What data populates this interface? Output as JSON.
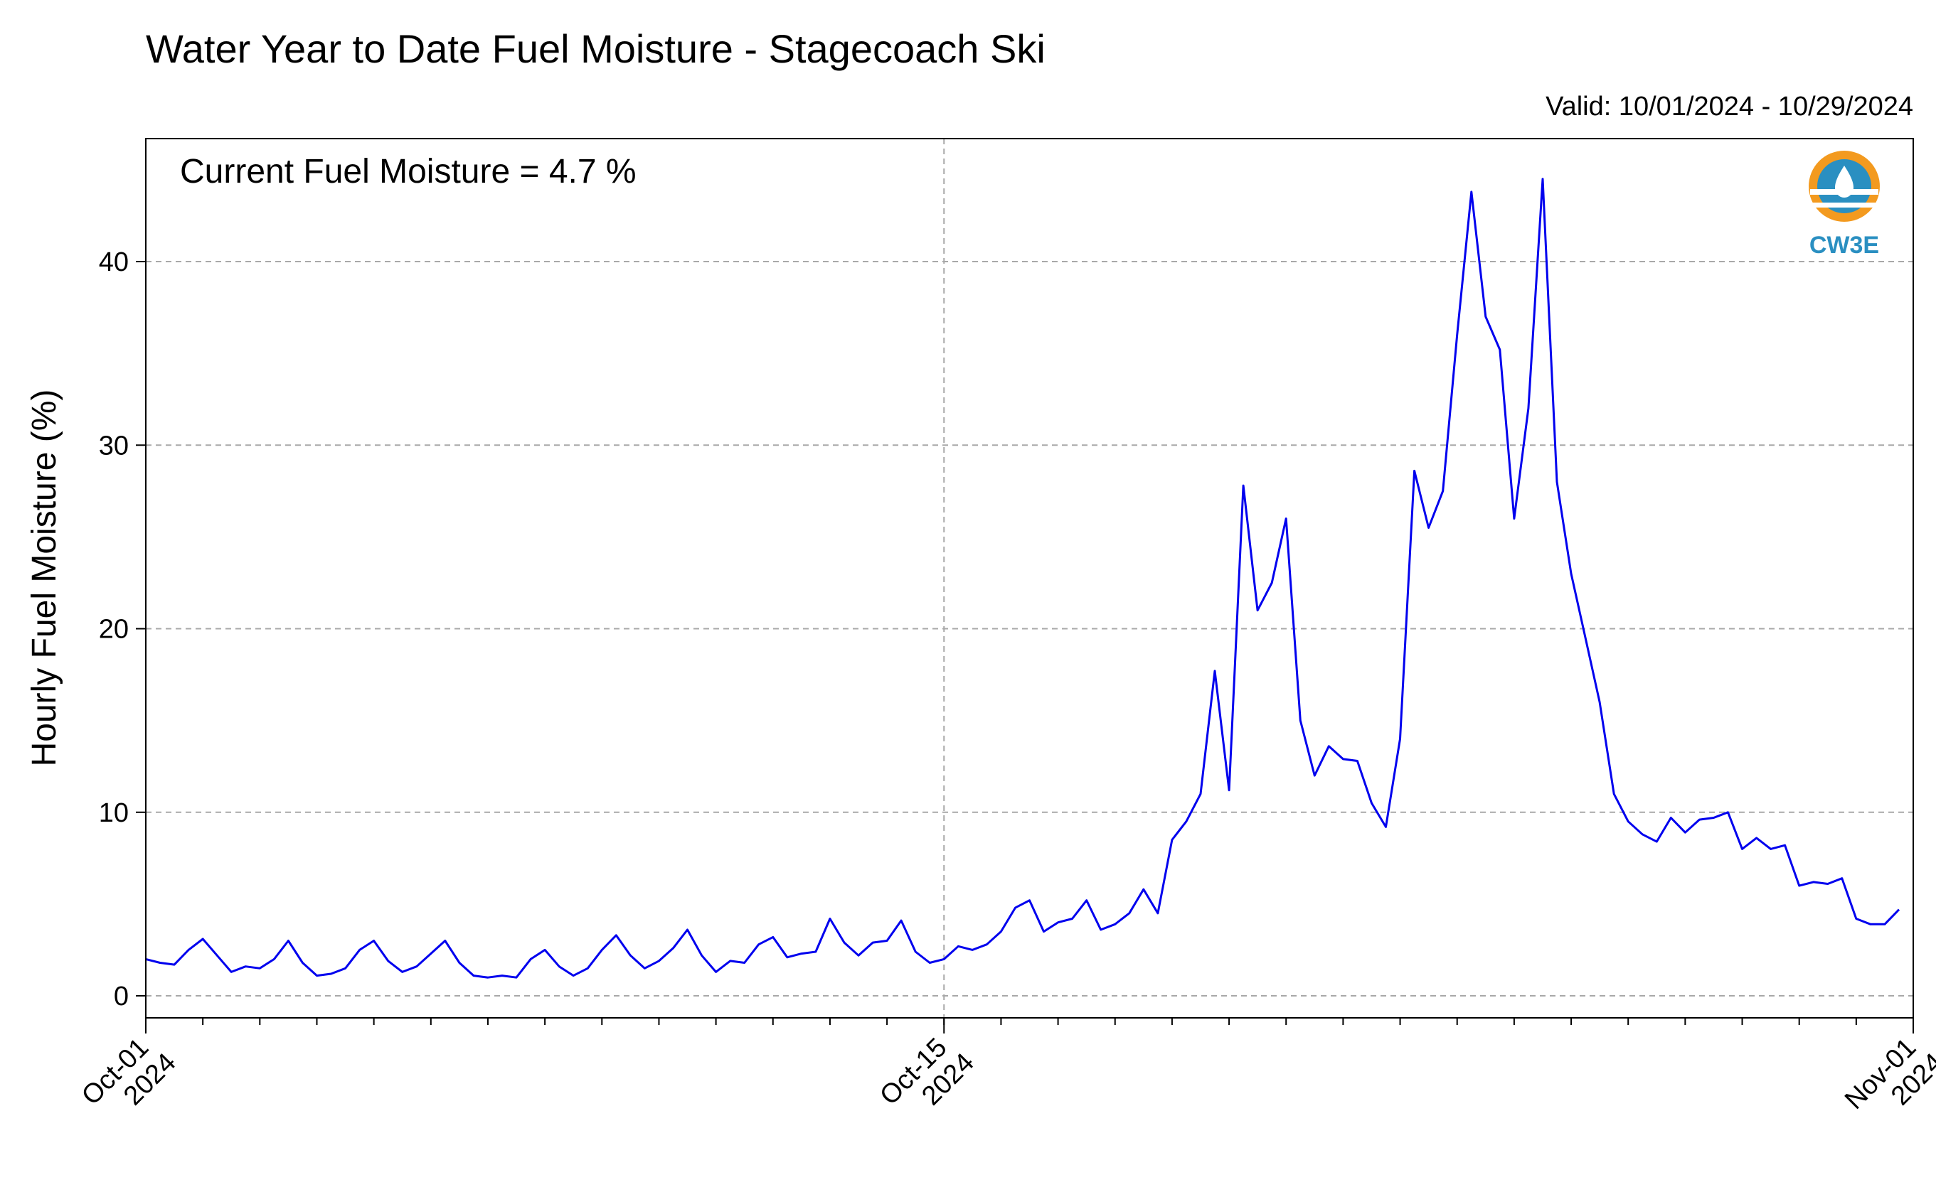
{
  "chart_data": {
    "type": "line",
    "title": "Water Year to Date Fuel Moisture - Stagecoach Ski",
    "subtitle": "Valid: 10/01/2024 - 10/29/2024",
    "annotation": "Current Fuel Moisture = 4.7 %",
    "xlabel": "",
    "ylabel": "Hourly Fuel Moisture (%)",
    "x_axis_type": "date",
    "xlim": [
      "2024-10-01",
      "2024-11-01"
    ],
    "ylim": [
      -1.2,
      46.7
    ],
    "yticks": [
      0,
      10,
      20,
      30,
      40
    ],
    "xticks": [
      {
        "date": "2024-10-01",
        "label1": "Oct-01",
        "label2": "2024"
      },
      {
        "date": "2024-10-15",
        "label1": "Oct-15",
        "label2": "2024"
      },
      {
        "date": "2024-11-01",
        "label1": "Nov-01",
        "label2": "2024"
      }
    ],
    "grid": true,
    "line_color": "#0000ee",
    "logo_text": "CW3E",
    "series": [
      {
        "points": [
          [
            "2024-10-01 00:00",
            2.0
          ],
          [
            "2024-10-01 06:00",
            1.8
          ],
          [
            "2024-10-01 12:00",
            1.7
          ],
          [
            "2024-10-01 18:00",
            2.5
          ],
          [
            "2024-10-02 00:00",
            3.1
          ],
          [
            "2024-10-02 06:00",
            2.2
          ],
          [
            "2024-10-02 12:00",
            1.3
          ],
          [
            "2024-10-02 18:00",
            1.6
          ],
          [
            "2024-10-03 00:00",
            1.5
          ],
          [
            "2024-10-03 06:00",
            2.0
          ],
          [
            "2024-10-03 12:00",
            3.0
          ],
          [
            "2024-10-03 18:00",
            1.8
          ],
          [
            "2024-10-04 00:00",
            1.1
          ],
          [
            "2024-10-04 06:00",
            1.2
          ],
          [
            "2024-10-04 12:00",
            1.5
          ],
          [
            "2024-10-04 18:00",
            2.5
          ],
          [
            "2024-10-05 00:00",
            3.0
          ],
          [
            "2024-10-05 06:00",
            1.9
          ],
          [
            "2024-10-05 12:00",
            1.3
          ],
          [
            "2024-10-05 18:00",
            1.6
          ],
          [
            "2024-10-06 00:00",
            2.3
          ],
          [
            "2024-10-06 06:00",
            3.0
          ],
          [
            "2024-10-06 12:00",
            1.8
          ],
          [
            "2024-10-06 18:00",
            1.1
          ],
          [
            "2024-10-07 00:00",
            1.0
          ],
          [
            "2024-10-07 06:00",
            1.1
          ],
          [
            "2024-10-07 12:00",
            1.0
          ],
          [
            "2024-10-07 18:00",
            2.0
          ],
          [
            "2024-10-08 00:00",
            2.5
          ],
          [
            "2024-10-08 06:00",
            1.6
          ],
          [
            "2024-10-08 12:00",
            1.1
          ],
          [
            "2024-10-08 18:00",
            1.5
          ],
          [
            "2024-10-09 00:00",
            2.5
          ],
          [
            "2024-10-09 06:00",
            3.3
          ],
          [
            "2024-10-09 12:00",
            2.2
          ],
          [
            "2024-10-09 18:00",
            1.5
          ],
          [
            "2024-10-10 00:00",
            1.9
          ],
          [
            "2024-10-10 06:00",
            2.6
          ],
          [
            "2024-10-10 12:00",
            3.6
          ],
          [
            "2024-10-10 18:00",
            2.2
          ],
          [
            "2024-10-11 00:00",
            1.3
          ],
          [
            "2024-10-11 06:00",
            1.9
          ],
          [
            "2024-10-11 12:00",
            1.8
          ],
          [
            "2024-10-11 18:00",
            2.8
          ],
          [
            "2024-10-12 00:00",
            3.2
          ],
          [
            "2024-10-12 06:00",
            2.1
          ],
          [
            "2024-10-12 12:00",
            2.3
          ],
          [
            "2024-10-12 18:00",
            2.4
          ],
          [
            "2024-10-13 00:00",
            4.2
          ],
          [
            "2024-10-13 06:00",
            2.9
          ],
          [
            "2024-10-13 12:00",
            2.2
          ],
          [
            "2024-10-13 18:00",
            2.9
          ],
          [
            "2024-10-14 00:00",
            3.0
          ],
          [
            "2024-10-14 06:00",
            4.1
          ],
          [
            "2024-10-14 12:00",
            2.4
          ],
          [
            "2024-10-14 18:00",
            1.8
          ],
          [
            "2024-10-15 00:00",
            2.0
          ],
          [
            "2024-10-15 06:00",
            2.7
          ],
          [
            "2024-10-15 12:00",
            2.5
          ],
          [
            "2024-10-15 18:00",
            2.8
          ],
          [
            "2024-10-16 00:00",
            3.5
          ],
          [
            "2024-10-16 06:00",
            4.8
          ],
          [
            "2024-10-16 12:00",
            5.2
          ],
          [
            "2024-10-16 18:00",
            3.5
          ],
          [
            "2024-10-17 00:00",
            4.0
          ],
          [
            "2024-10-17 06:00",
            4.2
          ],
          [
            "2024-10-17 12:00",
            5.2
          ],
          [
            "2024-10-17 18:00",
            3.6
          ],
          [
            "2024-10-18 00:00",
            3.9
          ],
          [
            "2024-10-18 06:00",
            4.5
          ],
          [
            "2024-10-18 12:00",
            5.8
          ],
          [
            "2024-10-18 18:00",
            4.5
          ],
          [
            "2024-10-19 00:00",
            8.5
          ],
          [
            "2024-10-19 06:00",
            9.5
          ],
          [
            "2024-10-19 12:00",
            11.0
          ],
          [
            "2024-10-19 18:00",
            17.7
          ],
          [
            "2024-10-20 00:00",
            11.2
          ],
          [
            "2024-10-20 06:00",
            27.8
          ],
          [
            "2024-10-20 12:00",
            21.0
          ],
          [
            "2024-10-20 18:00",
            22.5
          ],
          [
            "2024-10-21 00:00",
            26.0
          ],
          [
            "2024-10-21 06:00",
            15.0
          ],
          [
            "2024-10-21 12:00",
            12.0
          ],
          [
            "2024-10-21 18:00",
            13.6
          ],
          [
            "2024-10-22 00:00",
            12.9
          ],
          [
            "2024-10-22 06:00",
            12.8
          ],
          [
            "2024-10-22 12:00",
            10.5
          ],
          [
            "2024-10-22 18:00",
            9.2
          ],
          [
            "2024-10-23 00:00",
            14.0
          ],
          [
            "2024-10-23 06:00",
            28.6
          ],
          [
            "2024-10-23 12:00",
            25.5
          ],
          [
            "2024-10-23 18:00",
            27.5
          ],
          [
            "2024-10-24 00:00",
            36.0
          ],
          [
            "2024-10-24 06:00",
            43.8
          ],
          [
            "2024-10-24 12:00",
            37.0
          ],
          [
            "2024-10-24 18:00",
            35.2
          ],
          [
            "2024-10-25 00:00",
            26.0
          ],
          [
            "2024-10-25 06:00",
            32.0
          ],
          [
            "2024-10-25 12:00",
            44.5
          ],
          [
            "2024-10-25 18:00",
            28.0
          ],
          [
            "2024-10-26 00:00",
            23.0
          ],
          [
            "2024-10-26 06:00",
            19.5
          ],
          [
            "2024-10-26 12:00",
            16.0
          ],
          [
            "2024-10-26 18:00",
            11.0
          ],
          [
            "2024-10-27 00:00",
            9.5
          ],
          [
            "2024-10-27 06:00",
            8.8
          ],
          [
            "2024-10-27 12:00",
            8.4
          ],
          [
            "2024-10-27 18:00",
            9.7
          ],
          [
            "2024-10-28 00:00",
            8.9
          ],
          [
            "2024-10-28 06:00",
            9.6
          ],
          [
            "2024-10-28 12:00",
            9.7
          ],
          [
            "2024-10-28 18:00",
            10.0
          ],
          [
            "2024-10-29 00:00",
            8.0
          ],
          [
            "2024-10-29 06:00",
            8.6
          ],
          [
            "2024-10-29 12:00",
            8.0
          ],
          [
            "2024-10-29 18:00",
            8.2
          ],
          [
            "2024-10-30 00:00",
            6.0
          ],
          [
            "2024-10-30 06:00",
            6.2
          ],
          [
            "2024-10-30 12:00",
            6.1
          ],
          [
            "2024-10-30 18:00",
            6.4
          ],
          [
            "2024-10-31 00:00",
            4.2
          ],
          [
            "2024-10-31 06:00",
            3.9
          ],
          [
            "2024-10-31 12:00",
            3.9
          ],
          [
            "2024-10-31 18:00",
            4.7
          ]
        ]
      }
    ]
  }
}
